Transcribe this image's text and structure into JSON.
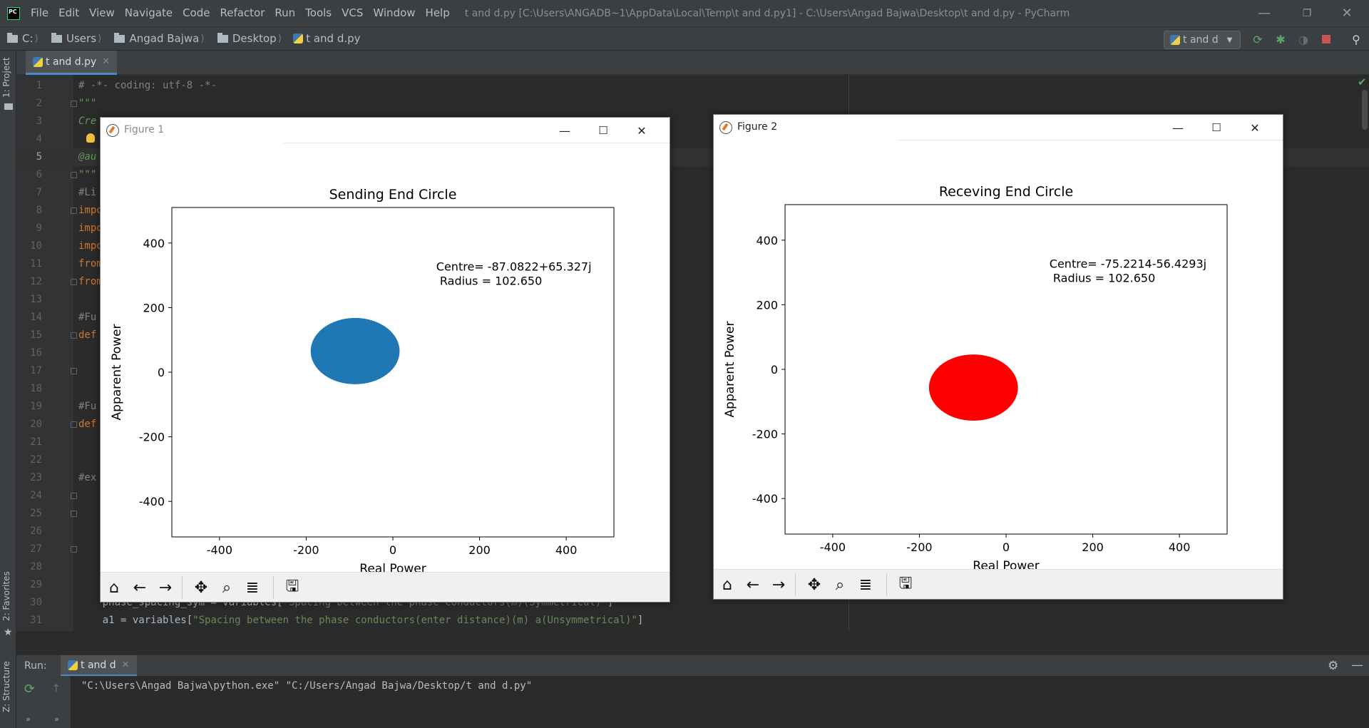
{
  "menu": [
    "File",
    "Edit",
    "View",
    "Navigate",
    "Code",
    "Refactor",
    "Run",
    "Tools",
    "VCS",
    "Window",
    "Help"
  ],
  "window_title": "t and d.py [C:\\Users\\ANGADB~1\\AppData\\Local\\Temp\\t and d.py1] - C:\\Users\\Angad Bajwa\\Desktop\\t and d.py - PyCharm",
  "breadcrumbs": [
    "C:",
    "Users",
    "Angad Bajwa",
    "Desktop",
    "t and d.py"
  ],
  "run_config": "t and d",
  "side_tabs": {
    "project": "1: Project",
    "favorites": "2: Favorites",
    "structure": "Z: Structure"
  },
  "editor_tab": "t and d.py",
  "code_lines": [
    {
      "n": "1",
      "text": "# -*- coding: utf-8 -*-",
      "kind": "comment"
    },
    {
      "n": "2",
      "text": "\"\"\"",
      "kind": "doc",
      "fold": true
    },
    {
      "n": "3",
      "text": "Cre",
      "kind": "doc"
    },
    {
      "n": "4",
      "text": "",
      "kind": "plain"
    },
    {
      "n": "5",
      "text": "@au",
      "kind": "doc",
      "current": true
    },
    {
      "n": "6",
      "text": "\"\"\"",
      "kind": "doc",
      "fold": true
    },
    {
      "n": "7",
      "text": "#Li",
      "kind": "comment"
    },
    {
      "n": "8",
      "text": "impo",
      "kind": "kw",
      "fold": true
    },
    {
      "n": "9",
      "text": "impo",
      "kind": "kw"
    },
    {
      "n": "10",
      "text": "impo",
      "kind": "kw"
    },
    {
      "n": "11",
      "text": "from",
      "kind": "kw"
    },
    {
      "n": "12",
      "text": "from",
      "kind": "kw",
      "fold": true
    },
    {
      "n": "13",
      "text": "",
      "kind": "plain"
    },
    {
      "n": "14",
      "text": "#Fu",
      "kind": "comment"
    },
    {
      "n": "15",
      "text": "def",
      "kind": "kw",
      "fold": true
    },
    {
      "n": "16",
      "text": "",
      "kind": "plain"
    },
    {
      "n": "17",
      "text": "",
      "kind": "plain",
      "fold": true
    },
    {
      "n": "18",
      "text": "",
      "kind": "plain"
    },
    {
      "n": "19",
      "text": "#Fu",
      "kind": "comment"
    },
    {
      "n": "20",
      "text": "def",
      "kind": "kw",
      "fold": true
    },
    {
      "n": "21",
      "text": "",
      "kind": "plain"
    },
    {
      "n": "22",
      "text": "",
      "kind": "plain"
    },
    {
      "n": "23",
      "text": "#ex",
      "kind": "comment"
    },
    {
      "n": "24",
      "text": "",
      "kind": "plain",
      "fold": true
    },
    {
      "n": "25",
      "text": "",
      "kind": "plain",
      "fold": true
    },
    {
      "n": "26",
      "text": "",
      "kind": "plain"
    },
    {
      "n": "27",
      "text": "",
      "kind": "plain",
      "fold": true
    },
    {
      "n": "28",
      "text": "",
      "kind": "plain"
    },
    {
      "n": "29",
      "text": "",
      "kind": "plain"
    },
    {
      "n": "30",
      "text": "    phase_spacing_sym = variables[\"Spacing between the phase conductors(m)(Symmetrical)\"]",
      "kind": "mixed",
      "prefix": "    phase_spacing_sym = variables[",
      "string": "\"Spacing between the phase conductors(m)(Symmetrical)\"",
      "suffix": "]"
    },
    {
      "n": "31",
      "text": "    a1 = variables[\"Spacing between the phase conductors(enter distance)(m) a(Unsymmetrical)\"]",
      "kind": "mixed",
      "prefix": "    a1 = variables[",
      "string": "\"Spacing between the phase conductors(enter distance)(m) a(Unsymmetrical)\"",
      "suffix": "]"
    }
  ],
  "run_panel": {
    "label": "Run:",
    "tab": "t and d",
    "console": "\"C:\\Users\\Angad Bajwa\\python.exe\" \"C:/Users/Angad Bajwa/Desktop/t and d.py\""
  },
  "figures": [
    {
      "window_title": "Figure 1",
      "chart_data": {
        "type": "scatter",
        "title": "Sending End Circle",
        "xlabel": "Real Power",
        "ylabel": "Apparent Power",
        "xlim": [
          -510,
          510
        ],
        "ylim": [
          -510,
          510
        ],
        "xticks": [
          -400,
          -200,
          0,
          200,
          400
        ],
        "yticks": [
          -400,
          -200,
          0,
          200,
          400
        ],
        "grid": false,
        "circle": {
          "cx": -87.0822,
          "cy": 65.327,
          "r": 102.65
        },
        "fill": "#1f77b4",
        "annotation": [
          "Centre= -87.0822+65.327j",
          " Radius = 102.650"
        ]
      }
    },
    {
      "window_title": "Figure 2",
      "chart_data": {
        "type": "scatter",
        "title": "Receving End Circle",
        "xlabel": "Real Power",
        "ylabel": "Apparent Power",
        "xlim": [
          -510,
          510
        ],
        "ylim": [
          -510,
          510
        ],
        "xticks": [
          -400,
          -200,
          0,
          200,
          400
        ],
        "yticks": [
          -400,
          -200,
          0,
          200,
          400
        ],
        "grid": false,
        "circle": {
          "cx": -75.2214,
          "cy": -56.4293,
          "r": 102.65
        },
        "fill": "#ff0000",
        "annotation": [
          "Centre= -75.2214-56.4293j",
          " Radius = 102.650"
        ]
      }
    }
  ],
  "toolbar_icons": [
    "home-icon",
    "back-arrow-icon",
    "forward-arrow-icon",
    "pan-icon",
    "zoom-icon",
    "configure-subplots-icon",
    "save-icon"
  ]
}
